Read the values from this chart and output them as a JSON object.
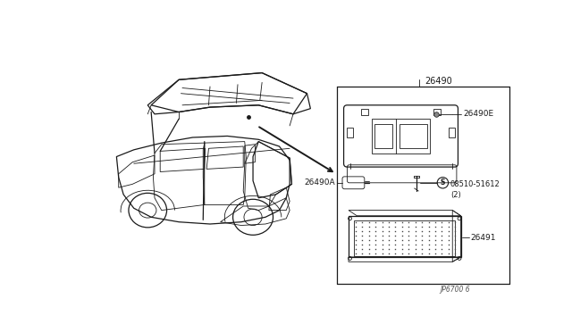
{
  "bg_color": "#ffffff",
  "line_color": "#1a1a1a",
  "gray_line": "#555555",
  "fig_width": 6.4,
  "fig_height": 3.72,
  "diagram_id": "JP6700 6",
  "part_26490": "26490",
  "part_26490E": "26490E",
  "part_26490A": "26490A",
  "part_08510": "08510-51612\n(2)",
  "part_26491": "26491"
}
